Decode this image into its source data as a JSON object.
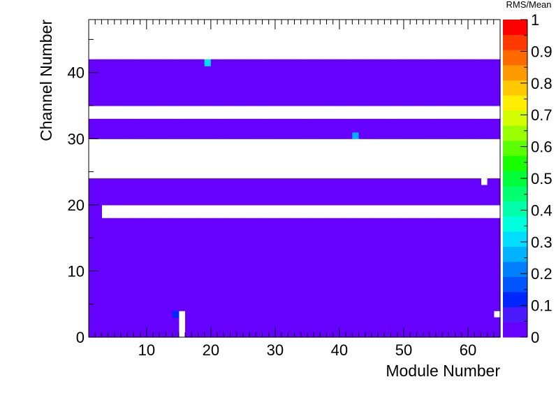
{
  "chart_data": {
    "type": "heatmap",
    "xlabel": "Module Number",
    "ylabel": "Channel Number",
    "zlabel": "RMS/Mean",
    "xlim": [
      1,
      65
    ],
    "ylim": [
      0,
      48
    ],
    "zlim": [
      0,
      1
    ],
    "x_ticks": [
      "10",
      "20",
      "30",
      "40",
      "50",
      "60"
    ],
    "y_ticks": [
      "0",
      "10",
      "20",
      "30",
      "40"
    ],
    "z_ticks": [
      "0",
      "0.1",
      "0.2",
      "0.3",
      "0.4",
      "0.5",
      "0.6",
      "0.7",
      "0.8",
      "0.9",
      "1"
    ],
    "palette": [
      "#6600ff",
      "#4d1aff",
      "#0026ff",
      "#0055ff",
      "#007fff",
      "#00b2ff",
      "#00ddff",
      "#00ffdd",
      "#00ffaa",
      "#00ff70",
      "#00ff3a",
      "#1aff00",
      "#5aff00",
      "#99ff00",
      "#d4ff00",
      "#ffee00",
      "#ffc800",
      "#ff9900",
      "#ff6a00",
      "#ff3a00",
      "#ff0000"
    ],
    "base_value": 0.0,
    "filled_channel_bands": [
      [
        0,
        18
      ],
      [
        20,
        24
      ],
      [
        30,
        33
      ],
      [
        35,
        42
      ]
    ],
    "empty_channel_row_segments": [
      {
        "channel": 18,
        "modules": [
          1,
          2
        ]
      },
      {
        "channel": 19,
        "modules": [
          1,
          2
        ]
      }
    ],
    "empty_cells": [
      {
        "module": 15,
        "channel": 0
      },
      {
        "module": 15,
        "channel": 1
      },
      {
        "module": 15,
        "channel": 2
      },
      {
        "module": 15,
        "channel": 3
      },
      {
        "module": 15,
        "channel": 18
      },
      {
        "module": 15,
        "channel": 19
      },
      {
        "module": 62,
        "channel": 23
      },
      {
        "module": 64,
        "channel": 3
      }
    ],
    "highlighted_cells": [
      {
        "module": 14,
        "channel": 3,
        "value": 0.12
      },
      {
        "module": 19,
        "channel": 41,
        "value": 0.32
      },
      {
        "module": 42,
        "channel": 30,
        "value": 0.24
      }
    ]
  }
}
